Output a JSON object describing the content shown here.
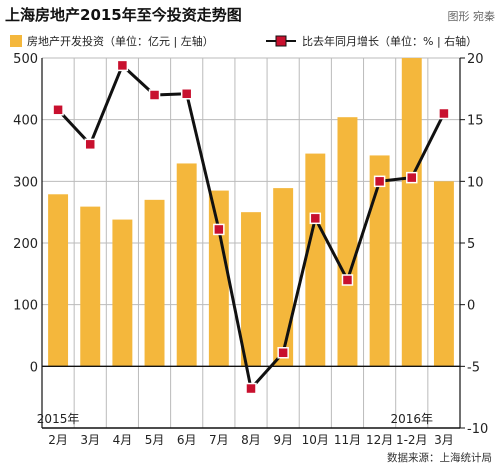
{
  "header": {
    "title": "上海房地产2015年至今投资走势图",
    "credit": "图形 宛秦"
  },
  "source": "数据来源：上海统计局",
  "colors": {
    "bar": "#f4b73c",
    "line": "#111111",
    "marker": "#c8102e",
    "marker_stroke": "#ffffff",
    "grid": "#bbbbbb",
    "axis": "#111111"
  },
  "chart_data": {
    "type": "bar+line",
    "categories": [
      "2月",
      "3月",
      "4月",
      "5月",
      "6月",
      "7月",
      "8月",
      "9月",
      "10月",
      "11月",
      "12月",
      "1-2月",
      "3月"
    ],
    "year_labels": [
      {
        "text": "2015年",
        "at_category": 0
      },
      {
        "text": "2016年",
        "at_category": 11
      }
    ],
    "series": [
      {
        "name": "房地产开发投资（单位：亿元 | 左轴）",
        "type": "bar",
        "axis": "left",
        "values": [
          279,
          259,
          238,
          270,
          329,
          285,
          250,
          289,
          345,
          404,
          342,
          500,
          300
        ]
      },
      {
        "name": "比去年同月增长（单位：% | 右轴）",
        "type": "line",
        "axis": "right",
        "values": [
          15.8,
          13.0,
          19.4,
          17.0,
          17.1,
          6.1,
          -6.8,
          -3.9,
          7.0,
          2.0,
          10.0,
          10.3,
          15.5
        ]
      }
    ],
    "y_left": {
      "min": -100,
      "max": 500,
      "ticks": [
        0,
        100,
        200,
        300,
        400,
        500
      ]
    },
    "y_right": {
      "min": -10,
      "max": 20,
      "ticks": [
        -10,
        -5,
        0,
        5,
        10,
        15,
        20
      ]
    },
    "grid": "vertical and horizontal",
    "legend": "top"
  }
}
